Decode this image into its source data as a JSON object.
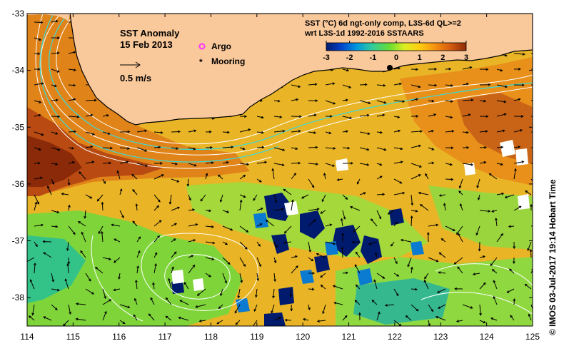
{
  "map": {
    "title": "SST Anomaly",
    "date": "15 Feb 2013",
    "scale_arrow_label": "0.5 m/s",
    "header_line1": "SST (°C) 6d ngt-only comp, L3S-6d QL>=2",
    "header_line2": "wrt L3S-1d 1992-2016 SSTAARS",
    "legend": [
      {
        "label": "Argo",
        "color": "#ff33ff",
        "marker": "circle"
      },
      {
        "label": "Mooring",
        "color": "#000000",
        "marker": "asterisk"
      }
    ],
    "colorbar": {
      "ticks": [
        "-3",
        "-2",
        "-1",
        "0",
        "1",
        "2",
        "3"
      ],
      "min": -3,
      "max": 3,
      "colors": [
        "#001a6e",
        "#0044cc",
        "#0099dd",
        "#33cc99",
        "#66dd33",
        "#ddee22",
        "#ffcc11",
        "#f59010",
        "#d45a10",
        "#8b2a08"
      ]
    },
    "lon_ticks": [
      "114",
      "115",
      "116",
      "117",
      "118",
      "119",
      "120",
      "121",
      "122",
      "123",
      "124",
      "125"
    ],
    "lat_ticks": [
      "-33",
      "-34",
      "-35",
      "-36",
      "-37",
      "-38"
    ],
    "lon_range": [
      114,
      125
    ],
    "lat_range": [
      -38.5,
      -33
    ],
    "credit": "© IMOS 03-Jul-2017 19:14 Hobart Time",
    "colors": {
      "land": "#f9c89b",
      "coast": "#000000",
      "background_sea": "#e9b526"
    }
  }
}
